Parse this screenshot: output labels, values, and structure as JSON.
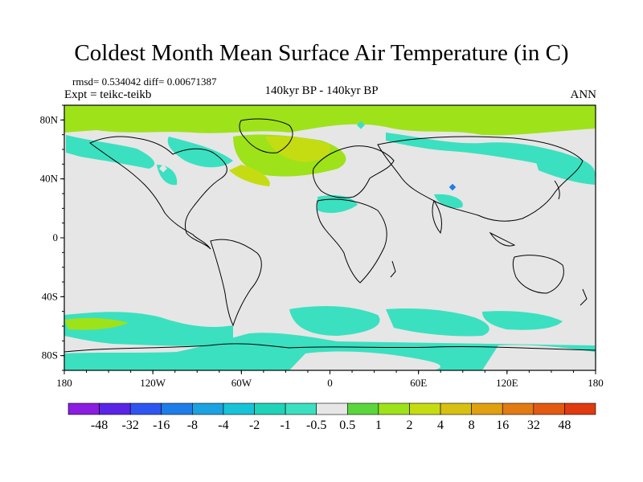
{
  "title": "Coldest Month Mean Surface Air Temperature (in C)",
  "stats": "rmsd= 0.534042  diff= 0.00671387",
  "experiment": "Expt = teikc-teikb",
  "center_label": "140kyr BP - 140kyr BP",
  "season": "ANN",
  "latitude_labels": [
    "80N",
    "40N",
    "0",
    "40S",
    "80S"
  ],
  "longitude_labels": [
    "180",
    "120W",
    "60W",
    "0",
    "60E",
    "120E",
    "180"
  ],
  "colorbar": {
    "labels": [
      "-48",
      "-32",
      "-16",
      "-8",
      "-4",
      "-2",
      "-1",
      "-0.5",
      "0.5",
      "1",
      "2",
      "4",
      "8",
      "16",
      "32",
      "48"
    ],
    "colors": [
      "#8a1de0",
      "#5a24e6",
      "#2f55f0",
      "#1e7de8",
      "#1aa3e0",
      "#18c3d8",
      "#1fd3b8",
      "#3be0c0",
      "#e6e6e6",
      "#5bd63c",
      "#9ee21a",
      "#c6dc12",
      "#d8c010",
      "#e0a010",
      "#e27b12",
      "#e25a12",
      "#e03a10"
    ]
  }
}
